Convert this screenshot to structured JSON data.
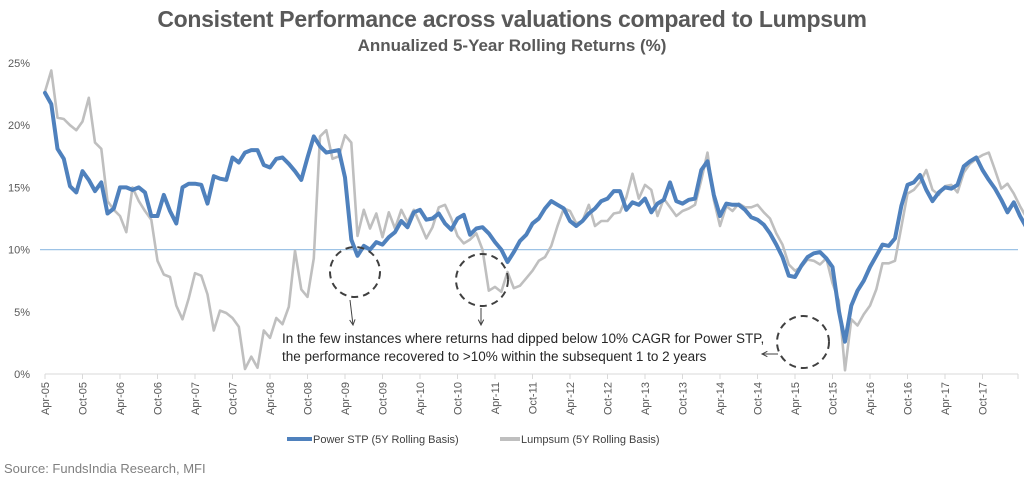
{
  "chart_data": {
    "type": "line",
    "title": "Consistent Performance across valuations compared to Lumpsum",
    "subtitle": "Annualized 5-Year Rolling Returns (%)",
    "xlabel": "",
    "ylabel": "",
    "ylim": [
      0,
      25
    ],
    "yticks": [
      0,
      5,
      10,
      15,
      20,
      25
    ],
    "ytick_labels": [
      "0%",
      "5%",
      "10%",
      "15%",
      "20%",
      "25%"
    ],
    "x_start": "Apr-05",
    "x_frequency": "monthly",
    "xtick_labels": [
      "Apr-05",
      "Oct-05",
      "Apr-06",
      "Oct-06",
      "Apr-07",
      "Oct-07",
      "Apr-08",
      "Oct-08",
      "Apr-09",
      "Oct-09",
      "Apr-10",
      "Oct-10",
      "Apr-11",
      "Oct-11",
      "Apr-12",
      "Oct-12",
      "Apr-13",
      "Oct-13",
      "Apr-14",
      "Oct-14",
      "Apr-15",
      "Oct-15",
      "Apr-16",
      "Oct-16",
      "Apr-17",
      "Oct-17"
    ],
    "reference_line": {
      "value": 10,
      "color": "#9DC3E6"
    },
    "grid": false,
    "legend": "bottom",
    "series": [
      {
        "name": "Power STP  (5Y Rolling Basis)",
        "color": "#4F81BD",
        "values": [
          22.6,
          21.7,
          18.1,
          17.3,
          15.1,
          14.6,
          16.3,
          15.6,
          14.7,
          15.4,
          12.9,
          13.3,
          15.0,
          15.0,
          14.8,
          15.0,
          14.6,
          12.7,
          12.7,
          14.4,
          13.1,
          12.1,
          15.0,
          15.3,
          15.3,
          15.2,
          13.7,
          15.9,
          15.7,
          15.6,
          17.4,
          17.0,
          17.8,
          18.0,
          18.0,
          16.8,
          16.6,
          17.3,
          17.4,
          16.9,
          16.3,
          15.6,
          17.4,
          19.1,
          18.3,
          17.8,
          17.9,
          18.0,
          15.8,
          10.8,
          9.5,
          10.3,
          10.0,
          10.6,
          10.4,
          11.0,
          11.4,
          12.3,
          11.8,
          13.0,
          13.2,
          12.4,
          12.5,
          12.9,
          12.1,
          11.6,
          12.5,
          12.8,
          11.2,
          11.7,
          11.8,
          11.3,
          10.6,
          10.0,
          9.0,
          9.8,
          10.7,
          11.2,
          12.1,
          12.5,
          13.3,
          13.9,
          13.6,
          13.3,
          12.3,
          11.9,
          12.3,
          12.9,
          13.3,
          13.9,
          14.1,
          14.7,
          14.7,
          13.2,
          13.8,
          13.6,
          14.1,
          13.0,
          13.7,
          14.0,
          15.4,
          13.9,
          13.7,
          14.0,
          14.1,
          16.4,
          17.1,
          14.4,
          12.7,
          13.7,
          13.6,
          13.6,
          13.2,
          12.6,
          12.4,
          12.0,
          11.3,
          10.4,
          9.4,
          7.9,
          7.8,
          8.7,
          9.4,
          9.7,
          9.8,
          9.3,
          8.6,
          5.1,
          2.6,
          5.5,
          6.7,
          7.5,
          8.6,
          9.5,
          10.4,
          10.3,
          10.9,
          13.5,
          15.2,
          15.4,
          16.0,
          14.8,
          13.9,
          14.6,
          15.0,
          14.9,
          15.2,
          16.7,
          17.1,
          17.4,
          16.4,
          15.6,
          14.9,
          14.0,
          13.0,
          13.8,
          12.7,
          11.8,
          10.9,
          12.3,
          12.9,
          12.5,
          13.1,
          13.7,
          13.0,
          12.4,
          12.1
        ],
        "line_width": 4
      },
      {
        "name": "Lumpsum (5Y Rolling Basis)",
        "color": "#BFBFBF",
        "values": [
          22.7,
          24.4,
          20.6,
          20.5,
          20.0,
          19.6,
          20.3,
          22.2,
          18.6,
          18.1,
          13.9,
          13.2,
          12.7,
          11.4,
          15.0,
          13.9,
          13.1,
          12.4,
          9.1,
          8.0,
          7.8,
          5.5,
          4.4,
          6.1,
          8.1,
          7.9,
          6.4,
          3.5,
          5.1,
          4.9,
          4.5,
          3.8,
          0.4,
          1.4,
          0.5,
          3.5,
          2.9,
          4.5,
          4.0,
          5.4,
          9.9,
          6.8,
          6.2,
          9.3,
          19.1,
          19.6,
          17.3,
          17.5,
          19.2,
          18.6,
          11.1,
          13.2,
          11.7,
          12.9,
          11.0,
          13.0,
          11.7,
          13.2,
          12.2,
          13.2,
          12.1,
          10.9,
          11.8,
          13.4,
          13.6,
          12.5,
          11.1,
          10.5,
          10.8,
          11.3,
          10.0,
          6.7,
          7.0,
          6.6,
          8.2,
          6.9,
          7.1,
          7.7,
          8.3,
          9.1,
          9.4,
          10.3,
          11.9,
          13.3,
          13.1,
          12.1,
          12.3,
          13.6,
          11.9,
          12.3,
          12.3,
          12.9,
          13.0,
          14.2,
          16.1,
          14.1,
          15.2,
          14.8,
          12.7,
          14.1,
          13.4,
          12.7,
          13.1,
          13.3,
          13.6,
          15.6,
          17.8,
          14.0,
          11.9,
          13.5,
          13.1,
          13.7,
          13.4,
          13.4,
          13.6,
          13.0,
          12.5,
          11.3,
          10.4,
          8.8,
          8.3,
          8.6,
          9.2,
          9.1,
          8.8,
          9.3,
          7.3,
          5.9,
          0.3,
          4.4,
          3.9,
          4.8,
          5.5,
          6.8,
          8.9,
          8.9,
          9.1,
          11.8,
          14.5,
          14.8,
          15.4,
          16.4,
          14.8,
          14.4,
          15.1,
          15.2,
          14.6,
          16.2,
          16.9,
          17.3,
          17.6,
          17.8,
          16.4,
          14.9,
          15.3,
          14.5,
          13.5,
          12.6,
          11.5,
          12.9,
          13.4,
          13.2,
          14.6,
          13.1,
          11.4,
          11.9
        ]
      }
    ],
    "annotations": {
      "text_line1": "In the few instances where returns had dipped below 10% CAGR for Power STP,",
      "text_line2": "the performance recovered to >10% within the subsequent 1 to 2 years",
      "highlight_periods": [
        "Apr-09",
        "Feb-11",
        "Apr-15"
      ]
    }
  },
  "source": "Source: FundsIndia Research, MFI"
}
